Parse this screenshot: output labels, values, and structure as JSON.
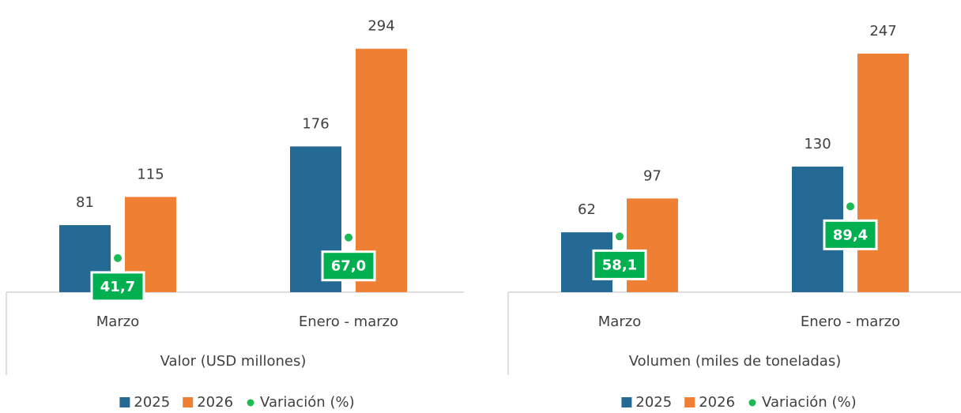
{
  "chart_data": [
    {
      "type": "bar",
      "group_label": "Valor (USD millones)",
      "categories": [
        "Marzo",
        "Enero - marzo"
      ],
      "series": [
        {
          "name": "2025",
          "color": "#256a94",
          "values": [
            81,
            176
          ]
        },
        {
          "name": "2026",
          "color": "#ee7f33",
          "values": [
            115,
            294
          ]
        },
        {
          "name": "Variación (%)",
          "color": "#1db954",
          "type": "point",
          "axis": "y2",
          "values": [
            41.7,
            67.0
          ],
          "value_labels": [
            "41,7",
            "67,0"
          ]
        }
      ],
      "ylim": [
        0,
        350
      ],
      "y2lim": [
        0,
        355
      ]
    },
    {
      "type": "bar",
      "group_label": "Volumen (miles de toneladas)",
      "categories": [
        "Marzo",
        "Enero - marzo"
      ],
      "series": [
        {
          "name": "2025",
          "color": "#256a94",
          "values": [
            62,
            130
          ]
        },
        {
          "name": "2026",
          "color": "#ee7f33",
          "values": [
            97,
            247
          ]
        },
        {
          "name": "Variación (%)",
          "color": "#1db954",
          "type": "point",
          "axis": "y2",
          "values": [
            58.1,
            89.4
          ],
          "value_labels": [
            "58,1",
            "89,4"
          ]
        }
      ],
      "ylim": [
        0,
        300
      ],
      "y2lim": [
        0,
        302
      ]
    }
  ]
}
